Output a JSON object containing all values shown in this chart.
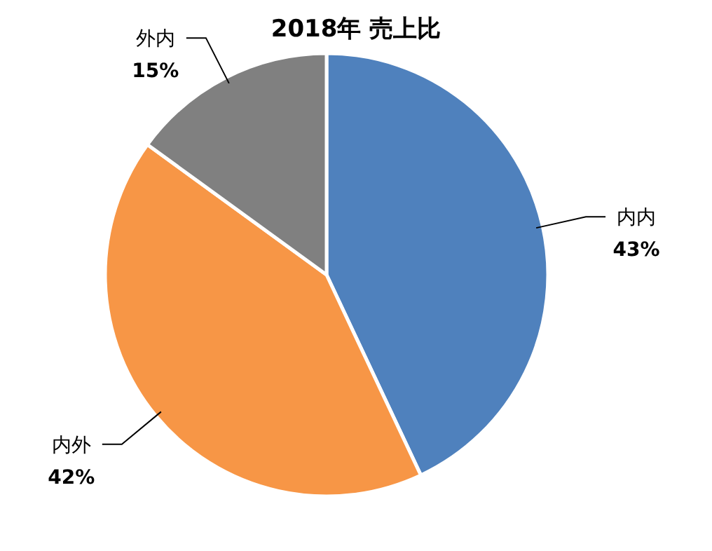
{
  "chart_data": {
    "type": "pie",
    "title": "2018年 売上比",
    "categories": [
      "内内",
      "内外",
      "外内"
    ],
    "values": [
      43,
      42,
      15
    ],
    "colors": [
      "#4f81bd",
      "#f79646",
      "#808080"
    ],
    "value_labels": [
      "43%",
      "42%",
      "15%"
    ],
    "legend": false
  }
}
